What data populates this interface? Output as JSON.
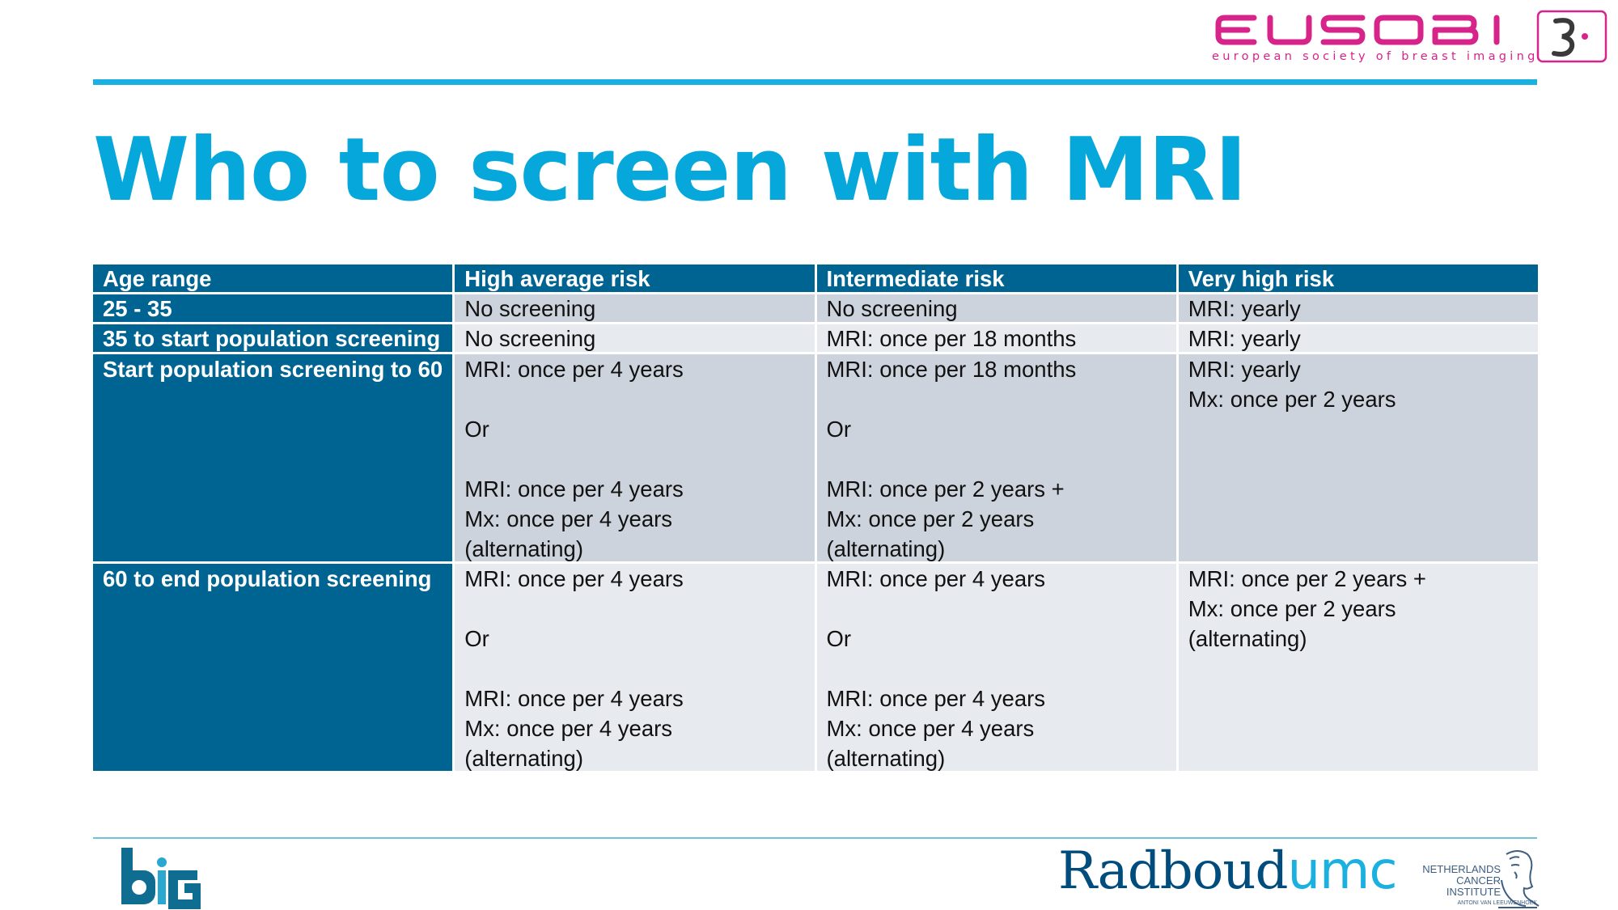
{
  "header": {
    "logo_word": "EUSOBI",
    "logo_subtitle": "european society of breast imaging"
  },
  "title": "Who to screen with MRI",
  "table": {
    "headers": [
      "Age range",
      "High average risk",
      "Intermediate risk",
      "Very high risk"
    ],
    "rows": [
      {
        "age": "25 - 35",
        "high_average": "No screening",
        "intermediate": "No screening",
        "very_high": "MRI: yearly"
      },
      {
        "age": "35 to start population screening",
        "high_average": "No screening",
        "intermediate": "MRI: once per 18 months",
        "very_high": "MRI: yearly"
      },
      {
        "age": "Start population screening to 60",
        "high_average": "MRI: once per 4 years\n\nOr\n\nMRI: once per 4 years\nMx: once per 4 years\n(alternating)",
        "intermediate": "MRI: once per 18 months\n\nOr\n\nMRI: once per 2 years +\nMx: once per 2 years\n(alternating)",
        "very_high": "MRI: yearly\nMx: once per 2 years"
      },
      {
        "age": "60 to end population screening",
        "high_average": "MRI: once per 4 years\n\nOr\n\nMRI: once per 4 years\nMx: once per 4 years\n(alternating)",
        "intermediate": "MRI: once per 4 years\n\nOr\n\nMRI: once per 4 years\nMx: once per 4 years\n(alternating)",
        "very_high": "MRI: once per 2 years +\nMx: once per 2 years\n(alternating)"
      }
    ]
  },
  "footer": {
    "big_logo": "big",
    "radboud_main": "Radboud",
    "radboud_suffix": "umc",
    "nki_lines": [
      "NETHERLANDS",
      "CANCER",
      "INSTITUTE"
    ],
    "nki_subtitle": "ANTONI VAN LEEUWENHOEK"
  },
  "colors": {
    "title": "#06a7db",
    "rule": "#1ab1e0",
    "header_fill": "#006493",
    "row_dark": "#cdd3dc",
    "row_light": "#e7eaee",
    "eusobi_magenta": "#d6248a",
    "radboud_navy": "#004c7d"
  }
}
